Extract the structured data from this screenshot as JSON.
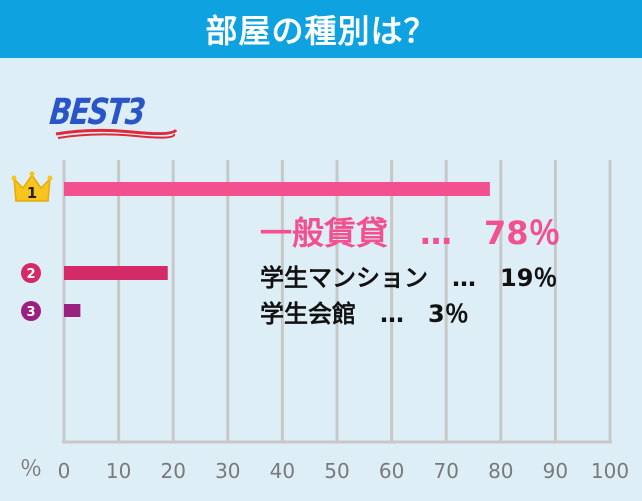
{
  "header": {
    "title": "部屋の種別は？"
  },
  "badge": {
    "text": "BEST3"
  },
  "chart_data": {
    "type": "bar",
    "orientation": "horizontal",
    "categories": [
      "一般賃貸",
      "学生マンション",
      "学生会館"
    ],
    "values": [
      78,
      19,
      3
    ],
    "ranks": [
      "1",
      "2",
      "3"
    ],
    "value_labels": [
      "一般賃貸　…　78％",
      "学生マンション　…　19％",
      "学生会館　…　3％"
    ],
    "xlim": [
      0,
      100
    ],
    "x_ticks": [
      "0",
      "10",
      "20",
      "30",
      "40",
      "50",
      "60",
      "70",
      "80",
      "90",
      "100"
    ],
    "unit_label": "％",
    "grid": true,
    "colors": [
      "#f2508e",
      "#d42a68",
      "#9b2180"
    ]
  },
  "colors": {
    "header_bg": "#0fa2e0",
    "background": "#ddeef6",
    "gridline": "#c8c8c8",
    "crown": "#f7c51d",
    "badge_text": "#2a55c8",
    "badge_underline": "#e02a3c"
  }
}
